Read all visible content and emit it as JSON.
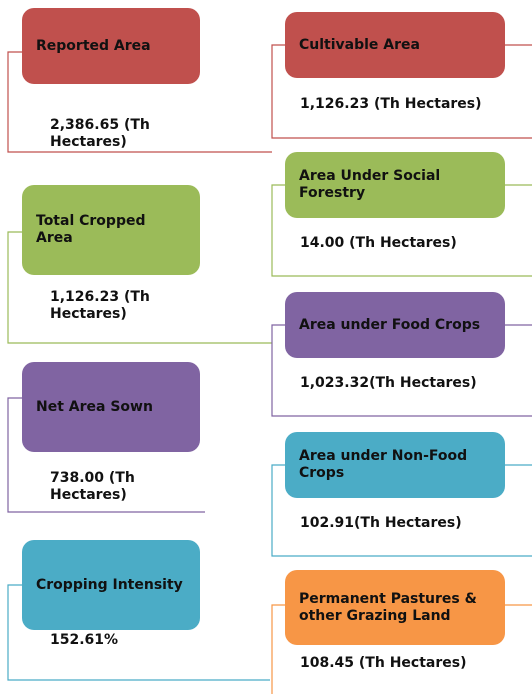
{
  "left_cards": [
    {
      "title": "Reported Area",
      "value": "2,386.65 (Th Hectares)"
    },
    {
      "title": "Total Cropped Area",
      "value": "1,126.23 (Th Hectares)"
    },
    {
      "title": "Net Area Sown",
      "value": "738.00 (Th Hectares)"
    },
    {
      "title": "Cropping Intensity",
      "value": "152.61%"
    }
  ],
  "right_cards": [
    {
      "title": "Cultivable Area",
      "value": "1,126.23 (Th Hectares)"
    },
    {
      "title": "Area Under Social Forestry",
      "value": "14.00 (Th Hectares)"
    },
    {
      "title": "Area under Food Crops",
      "value": "1,023.32(Th Hectares)"
    },
    {
      "title": "Area under Non-Food Crops",
      "value": "102.91(Th Hectares)"
    },
    {
      "title": "Permanent Pastures & other Grazing Land",
      "value": "108.45 (Th Hectares)"
    }
  ]
}
